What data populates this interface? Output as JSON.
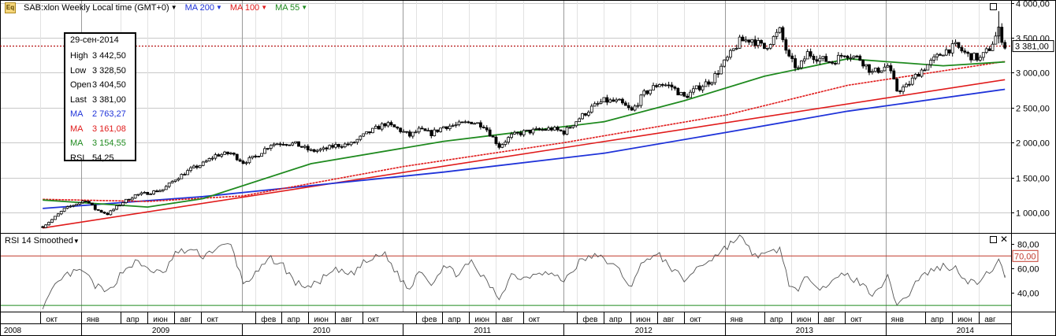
{
  "header": {
    "symbol_icon": "chart-icon",
    "symbol_label": "SAB:xlon Weekly Local time (GMT+0)",
    "ma200_label": "MA 200",
    "ma100_label": "MA 100",
    "ma55_label": "MA 55",
    "colors": {
      "ma200": "#1f33d9",
      "ma100": "#e01b1b",
      "ma55": "#1f8a1f"
    }
  },
  "ohlc_box": {
    "date": "29-сен-2014",
    "rows": [
      {
        "key": "High",
        "value": "3 442,50",
        "color": "#000000"
      },
      {
        "key": "Low",
        "value": "3 328,50",
        "color": "#000000"
      },
      {
        "key": "Open",
        "value": "3 404,50",
        "color": "#000000"
      },
      {
        "key": "Last",
        "value": "3 381,00",
        "color": "#000000"
      },
      {
        "key": "MA",
        "value": "2 763,27",
        "color": "#1f33d9"
      },
      {
        "key": "MA",
        "value": "3 161,08",
        "color": "#e01b1b"
      },
      {
        "key": "MA",
        "value": "3 154,55",
        "color": "#1f8a1f"
      },
      {
        "key": "RSI",
        "value": "54,25",
        "color": "#000000"
      }
    ]
  },
  "rsi_panel": {
    "title": "RSI 14 Smoothed"
  },
  "chart_data": [
    {
      "type": "candlestick",
      "title": "SAB:xlon Weekly Local time (GMT+0)",
      "yaxis_ticks": [
        {
          "value": 1000,
          "label": "1 000,00"
        },
        {
          "value": 1500,
          "label": "1 500,00"
        },
        {
          "value": 2000,
          "label": "2 000,00"
        },
        {
          "value": 2500,
          "label": "2 500,00"
        },
        {
          "value": 3000,
          "label": "3 000,00"
        },
        {
          "value": 3500,
          "label": "3 500,00"
        },
        {
          "value": 4000,
          "label": "4 000,00"
        }
      ],
      "ylim": [
        710,
        4040
      ],
      "last_price": 3381,
      "last_price_label": "3 381,00",
      "x_start": "2008-10-06",
      "x_end": "2014-09-29",
      "close_path": [
        [
          "2008-10-06",
          800
        ],
        [
          "2008-10-27",
          900
        ],
        [
          "2008-11-24",
          1050
        ],
        [
          "2008-12-22",
          1130
        ],
        [
          "2009-01-12",
          1180
        ],
        [
          "2009-02-02",
          1050
        ],
        [
          "2009-03-02",
          980
        ],
        [
          "2009-04-06",
          1150
        ],
        [
          "2009-05-04",
          1250
        ],
        [
          "2009-06-01",
          1280
        ],
        [
          "2009-07-06",
          1330
        ],
        [
          "2009-08-03",
          1480
        ],
        [
          "2009-09-07",
          1620
        ],
        [
          "2009-10-05",
          1700
        ],
        [
          "2009-11-02",
          1820
        ],
        [
          "2009-12-07",
          1850
        ],
        [
          "2010-01-04",
          1720
        ],
        [
          "2010-02-01",
          1800
        ],
        [
          "2010-03-08",
          1980
        ],
        [
          "2010-04-05",
          2000
        ],
        [
          "2010-05-03",
          1980
        ],
        [
          "2010-06-07",
          1880
        ],
        [
          "2010-07-05",
          1900
        ],
        [
          "2010-08-02",
          1960
        ],
        [
          "2010-09-06",
          1980
        ],
        [
          "2010-10-04",
          2100
        ],
        [
          "2010-11-01",
          2200
        ],
        [
          "2010-11-22",
          2270
        ],
        [
          "2010-12-20",
          2200
        ],
        [
          "2011-01-17",
          2100
        ],
        [
          "2011-02-07",
          2180
        ],
        [
          "2011-03-07",
          2130
        ],
        [
          "2011-04-04",
          2230
        ],
        [
          "2011-05-02",
          2250
        ],
        [
          "2011-06-06",
          2300
        ],
        [
          "2011-07-04",
          2250
        ],
        [
          "2011-08-08",
          1950
        ],
        [
          "2011-09-05",
          2100
        ],
        [
          "2011-10-03",
          2150
        ],
        [
          "2011-11-07",
          2180
        ],
        [
          "2011-12-05",
          2200
        ],
        [
          "2012-01-02",
          2150
        ],
        [
          "2012-02-06",
          2350
        ],
        [
          "2012-03-05",
          2500
        ],
        [
          "2012-04-02",
          2600
        ],
        [
          "2012-05-07",
          2580
        ],
        [
          "2012-06-04",
          2450
        ],
        [
          "2012-07-02",
          2700
        ],
        [
          "2012-08-06",
          2850
        ],
        [
          "2012-09-03",
          2800
        ],
        [
          "2012-10-01",
          2650
        ],
        [
          "2012-11-05",
          2800
        ],
        [
          "2012-12-03",
          2900
        ],
        [
          "2013-01-07",
          3200
        ],
        [
          "2013-02-04",
          3450
        ],
        [
          "2013-03-04",
          3480
        ],
        [
          "2013-04-01",
          3350
        ],
        [
          "2013-05-06",
          3600
        ],
        [
          "2013-05-27",
          3200
        ],
        [
          "2013-06-17",
          3050
        ],
        [
          "2013-07-08",
          3280
        ],
        [
          "2013-08-05",
          3200
        ],
        [
          "2013-09-02",
          3150
        ],
        [
          "2013-09-30",
          3280
        ],
        [
          "2013-11-04",
          3200
        ],
        [
          "2013-12-02",
          3000
        ],
        [
          "2014-01-06",
          3100
        ],
        [
          "2014-01-27",
          2750
        ],
        [
          "2014-02-17",
          2800
        ],
        [
          "2014-03-17",
          3000
        ],
        [
          "2014-04-14",
          3150
        ],
        [
          "2014-05-12",
          3300
        ],
        [
          "2014-06-09",
          3380
        ],
        [
          "2014-07-07",
          3250
        ],
        [
          "2014-08-04",
          3200
        ],
        [
          "2014-08-25",
          3350
        ],
        [
          "2014-09-15",
          3600
        ],
        [
          "2014-09-29",
          3381
        ]
      ],
      "ma200": [
        [
          "2008-10-06",
          1060
        ],
        [
          "2009-10-05",
          1230
        ],
        [
          "2011-04-04",
          1580
        ],
        [
          "2012-04-02",
          1850
        ],
        [
          "2013-01-07",
          2150
        ],
        [
          "2013-10-07",
          2450
        ],
        [
          "2014-09-29",
          2763.27
        ]
      ],
      "ma100": [
        [
          "2008-10-06",
          1190
        ],
        [
          "2009-06-01",
          1160
        ],
        [
          "2010-01-04",
          1240
        ],
        [
          "2011-01-03",
          1660
        ],
        [
          "2012-01-02",
          2000
        ],
        [
          "2013-01-07",
          2400
        ],
        [
          "2013-10-07",
          2820
        ],
        [
          "2014-09-29",
          3161.08
        ]
      ],
      "ma55": [
        [
          "2008-10-06",
          1180
        ],
        [
          "2009-06-01",
          1080
        ],
        [
          "2009-10-05",
          1200
        ],
        [
          "2010-06-07",
          1700
        ],
        [
          "2011-04-04",
          2020
        ],
        [
          "2012-04-02",
          2300
        ],
        [
          "2012-10-01",
          2600
        ],
        [
          "2013-04-01",
          2950
        ],
        [
          "2013-10-07",
          3200
        ],
        [
          "2014-05-12",
          3100
        ],
        [
          "2014-09-29",
          3154.55
        ]
      ],
      "trendline": [
        [
          "2008-10-06",
          780
        ],
        [
          "2014-09-29",
          2900
        ]
      ]
    },
    {
      "type": "line",
      "title": "RSI 14 Smoothed",
      "yaxis_ticks": [
        {
          "value": 40,
          "label": "40,00"
        },
        {
          "value": 60,
          "label": "60,00"
        },
        {
          "value": 80,
          "label": "80,00"
        }
      ],
      "ylim": [
        25,
        88
      ],
      "overbought": 70,
      "overbought_label": "70,00",
      "oversold": 30,
      "last_value": 54.25,
      "rsi_path": [
        [
          "2008-10-06",
          28
        ],
        [
          "2008-11-03",
          45
        ],
        [
          "2008-12-01",
          55
        ],
        [
          "2009-01-05",
          58
        ],
        [
          "2009-02-02",
          46
        ],
        [
          "2009-03-02",
          40
        ],
        [
          "2009-04-06",
          58
        ],
        [
          "2009-05-04",
          65
        ],
        [
          "2009-06-01",
          60
        ],
        [
          "2009-07-06",
          55
        ],
        [
          "2009-08-03",
          72
        ],
        [
          "2009-09-07",
          75
        ],
        [
          "2009-10-05",
          70
        ],
        [
          "2009-11-02",
          76
        ],
        [
          "2009-12-07",
          79
        ],
        [
          "2010-01-04",
          48
        ],
        [
          "2010-02-01",
          55
        ],
        [
          "2010-03-08",
          68
        ],
        [
          "2010-04-05",
          62
        ],
        [
          "2010-05-03",
          48
        ],
        [
          "2010-06-07",
          45
        ],
        [
          "2010-07-05",
          52
        ],
        [
          "2010-08-02",
          58
        ],
        [
          "2010-09-06",
          55
        ],
        [
          "2010-10-04",
          64
        ],
        [
          "2010-11-22",
          72
        ],
        [
          "2010-12-20",
          55
        ],
        [
          "2011-01-17",
          42
        ],
        [
          "2011-02-07",
          60
        ],
        [
          "2011-03-07",
          48
        ],
        [
          "2011-04-04",
          62
        ],
        [
          "2011-05-02",
          56
        ],
        [
          "2011-06-06",
          64
        ],
        [
          "2011-07-04",
          52
        ],
        [
          "2011-08-08",
          36
        ],
        [
          "2011-09-05",
          55
        ],
        [
          "2011-10-03",
          52
        ],
        [
          "2011-11-07",
          58
        ],
        [
          "2011-12-05",
          55
        ],
        [
          "2012-01-02",
          50
        ],
        [
          "2012-02-06",
          65
        ],
        [
          "2012-03-05",
          70
        ],
        [
          "2012-04-02",
          68
        ],
        [
          "2012-05-07",
          58
        ],
        [
          "2012-06-04",
          45
        ],
        [
          "2012-07-02",
          68
        ],
        [
          "2012-08-06",
          70
        ],
        [
          "2012-09-03",
          60
        ],
        [
          "2012-10-01",
          50
        ],
        [
          "2012-11-05",
          62
        ],
        [
          "2012-12-03",
          68
        ],
        [
          "2013-01-07",
          78
        ],
        [
          "2013-02-04",
          86
        ],
        [
          "2013-03-04",
          72
        ],
        [
          "2013-04-01",
          70
        ],
        [
          "2013-05-06",
          76
        ],
        [
          "2013-05-27",
          48
        ],
        [
          "2013-06-17",
          40
        ],
        [
          "2013-07-08",
          55
        ],
        [
          "2013-08-05",
          45
        ],
        [
          "2013-09-02",
          48
        ],
        [
          "2013-09-30",
          56
        ],
        [
          "2013-11-04",
          48
        ],
        [
          "2013-12-02",
          40
        ],
        [
          "2014-01-06",
          52
        ],
        [
          "2014-01-27",
          32
        ],
        [
          "2014-02-17",
          36
        ],
        [
          "2014-03-17",
          52
        ],
        [
          "2014-04-14",
          58
        ],
        [
          "2014-05-12",
          62
        ],
        [
          "2014-06-09",
          60
        ],
        [
          "2014-07-07",
          50
        ],
        [
          "2014-08-04",
          48
        ],
        [
          "2014-08-25",
          58
        ],
        [
          "2014-09-15",
          65
        ],
        [
          "2014-09-29",
          54.25
        ]
      ]
    }
  ],
  "time_axis": {
    "months": [
      [
        "2008-10-01",
        "окт"
      ],
      [
        "2009-01-01",
        "янв"
      ],
      [
        "2009-04-01",
        "апр"
      ],
      [
        "2009-06-01",
        "июн"
      ],
      [
        "2009-08-01",
        "авг"
      ],
      [
        "2009-10-01",
        "окт"
      ],
      [
        "2010-02-01",
        "фев"
      ],
      [
        "2010-04-01",
        "апр"
      ],
      [
        "2010-06-01",
        "июн"
      ],
      [
        "2010-08-01",
        "авг"
      ],
      [
        "2010-10-01",
        "окт"
      ],
      [
        "2011-02-01",
        "фев"
      ],
      [
        "2011-04-01",
        "апр"
      ],
      [
        "2011-06-01",
        "июн"
      ],
      [
        "2011-08-01",
        "авг"
      ],
      [
        "2011-10-01",
        "окт"
      ],
      [
        "2012-02-01",
        "фев"
      ],
      [
        "2012-04-01",
        "апр"
      ],
      [
        "2012-06-01",
        "июн"
      ],
      [
        "2012-08-01",
        "авг"
      ],
      [
        "2012-10-01",
        "окт"
      ],
      [
        "2013-01-01",
        "янв"
      ],
      [
        "2013-04-01",
        "апр"
      ],
      [
        "2013-06-01",
        "июн"
      ],
      [
        "2013-08-01",
        "авг"
      ],
      [
        "2013-10-01",
        "окт"
      ],
      [
        "2014-01-01",
        "янв"
      ],
      [
        "2014-04-01",
        "апр"
      ],
      [
        "2014-06-01",
        "июн"
      ],
      [
        "2014-08-01",
        "авг"
      ]
    ],
    "years": [
      [
        "2008-07-01",
        "2008"
      ],
      [
        "2009-07-01",
        "2009"
      ],
      [
        "2010-07-01",
        "2010"
      ],
      [
        "2011-07-01",
        "2011"
      ],
      [
        "2012-07-01",
        "2012"
      ],
      [
        "2013-07-01",
        "2013"
      ],
      [
        "2014-07-01",
        "2014"
      ]
    ],
    "year_boundaries": [
      "2009-01-01",
      "2010-01-01",
      "2011-01-01",
      "2012-01-01",
      "2013-01-01",
      "2014-01-01"
    ]
  }
}
